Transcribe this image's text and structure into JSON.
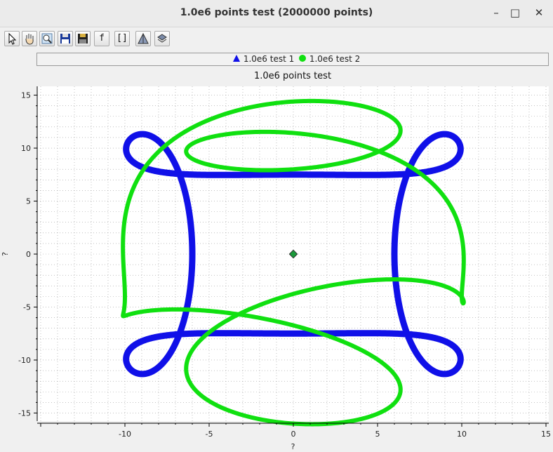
{
  "window": {
    "title": "1.0e6 points test (2000000 points)",
    "minimize": "–",
    "maximize": "□",
    "close": "✕"
  },
  "toolbar": {
    "buttons": [
      {
        "name": "pointer-tool-button",
        "icon": "pointer-icon",
        "label": ""
      },
      {
        "name": "pan-tool-button",
        "icon": "hand-icon",
        "label": ""
      },
      {
        "name": "zoom-tool-button",
        "icon": "magnifier-icon",
        "label": ""
      },
      {
        "name": "save-button",
        "icon": "floppy-icon",
        "label": ""
      },
      {
        "name": "save-as-button",
        "icon": "floppy-dark-icon",
        "label": ""
      },
      {
        "name": "function-button",
        "icon": "f-icon",
        "label": "f"
      },
      {
        "name": "brackets-button",
        "icon": "brackets-icon",
        "label": "[]"
      },
      {
        "name": "plot-3d-button",
        "icon": "pyramid-icon",
        "label": ""
      },
      {
        "name": "layers-button",
        "icon": "layers-icon",
        "label": ""
      }
    ]
  },
  "legend": {
    "items": [
      {
        "label": "1.0e6 test 1",
        "color": "#1010e8",
        "marker": "triangle"
      },
      {
        "label": "1.0e6 test 2",
        "color": "#10e010",
        "marker": "circle"
      }
    ]
  },
  "chart_data": {
    "type": "line",
    "title": "1.0e6 points test",
    "xlabel": "?",
    "ylabel": "?",
    "xlim": [
      -15,
      15
    ],
    "ylim": [
      -15.5,
      15.5
    ],
    "x_ticks": [
      -10,
      -5,
      0,
      5,
      10,
      15
    ],
    "y_ticks": [
      15,
      10,
      5,
      0,
      -5,
      -10,
      -15
    ],
    "grid": true,
    "series": [
      {
        "name": "1.0e6 test 1",
        "color": "#1010e8",
        "points": 1000000
      },
      {
        "name": "1.0e6 test 2",
        "color": "#10e010",
        "points": 1000000
      }
    ],
    "center_marker": {
      "x": 0,
      "y": 0,
      "color": "#1a9a3a"
    }
  }
}
